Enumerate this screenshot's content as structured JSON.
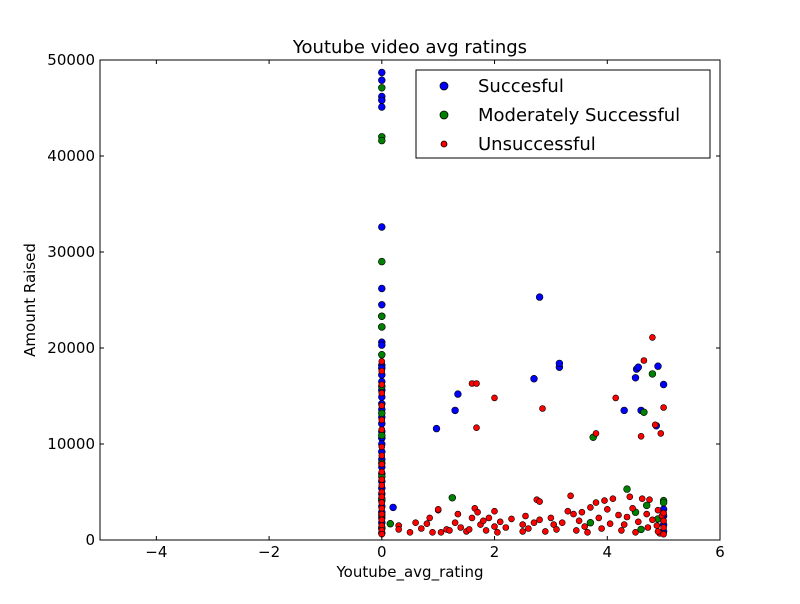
{
  "chart_data": {
    "type": "scatter",
    "title": "Youtube video avg ratings",
    "xlabel": "Youtube_avg_rating",
    "ylabel": "Amount Raised",
    "xlim": [
      -5,
      6
    ],
    "ylim": [
      0,
      50000
    ],
    "xticks": [
      -4,
      -2,
      0,
      2,
      4,
      6
    ],
    "xtick_labels": [
      "−4",
      "−2",
      "0",
      "2",
      "4",
      "6"
    ],
    "yticks": [
      0,
      10000,
      20000,
      30000,
      40000,
      50000
    ],
    "ytick_labels": [
      "0",
      "10000",
      "20000",
      "30000",
      "40000",
      "50000"
    ],
    "grid": false,
    "legend_position": "top-right",
    "series": [
      {
        "name": "Succesful",
        "color": "#0000ff",
        "points": [
          [
            0,
            48700
          ],
          [
            0,
            47900
          ],
          [
            0,
            46200
          ],
          [
            0,
            45800
          ],
          [
            0,
            45100
          ],
          [
            0,
            32600
          ],
          [
            0,
            26200
          ],
          [
            0,
            24500
          ],
          [
            0,
            23300
          ],
          [
            0,
            22200
          ],
          [
            0,
            20600
          ],
          [
            0,
            20300
          ],
          [
            0,
            18200
          ],
          [
            0,
            17900
          ],
          [
            0,
            17200
          ],
          [
            0,
            16500
          ],
          [
            0,
            15600
          ],
          [
            0,
            14900
          ],
          [
            0,
            14200
          ],
          [
            0,
            13600
          ],
          [
            0,
            12800
          ],
          [
            0,
            12100
          ],
          [
            0,
            11300
          ],
          [
            0,
            10600
          ],
          [
            0,
            10000
          ],
          [
            0,
            9200
          ],
          [
            0,
            8400
          ],
          [
            0,
            7600
          ],
          [
            0,
            6900
          ],
          [
            0,
            6100
          ],
          [
            0,
            5400
          ],
          [
            0,
            4800
          ],
          [
            0,
            4100
          ],
          [
            0,
            3500
          ],
          [
            0,
            2900
          ],
          [
            0,
            2300
          ],
          [
            0,
            1800
          ],
          [
            0,
            1200
          ],
          [
            0,
            700
          ],
          [
            0.2,
            3400
          ],
          [
            0.97,
            11600
          ],
          [
            1.3,
            13500
          ],
          [
            1.35,
            15200
          ],
          [
            2.7,
            16800
          ],
          [
            2.8,
            25300
          ],
          [
            3.15,
            18000
          ],
          [
            3.15,
            18400
          ],
          [
            4.3,
            13500
          ],
          [
            4.5,
            16900
          ],
          [
            4.52,
            17800
          ],
          [
            4.55,
            18000
          ],
          [
            4.6,
            13500
          ],
          [
            4.87,
            11900
          ],
          [
            4.9,
            18100
          ],
          [
            5.0,
            16200
          ],
          [
            5.0,
            3200
          ],
          [
            5.0,
            2500
          ],
          [
            5.0,
            1600
          ],
          [
            5.0,
            900
          ]
        ]
      },
      {
        "name": "Moderately Successful",
        "color": "#008000",
        "points": [
          [
            0,
            47100
          ],
          [
            0,
            42000
          ],
          [
            0,
            41600
          ],
          [
            0,
            29000
          ],
          [
            0,
            23300
          ],
          [
            0,
            22200
          ],
          [
            0,
            19300
          ],
          [
            0,
            16000
          ],
          [
            0,
            13200
          ],
          [
            0,
            10900
          ],
          [
            0,
            8000
          ],
          [
            0,
            6600
          ],
          [
            0,
            4300
          ],
          [
            0,
            2600
          ],
          [
            0,
            1300
          ],
          [
            0.15,
            1700
          ],
          [
            1.25,
            4400
          ],
          [
            3.75,
            10700
          ],
          [
            3.7,
            1800
          ],
          [
            4.35,
            5300
          ],
          [
            4.5,
            2900
          ],
          [
            4.65,
            13300
          ],
          [
            4.8,
            17300
          ],
          [
            4.7,
            3600
          ],
          [
            5.0,
            4100
          ],
          [
            5.0,
            3900
          ],
          [
            4.9,
            2200
          ],
          [
            4.6,
            1100
          ]
        ]
      },
      {
        "name": "Unsuccessful",
        "color": "#ff0000",
        "points": [
          [
            0,
            18600
          ],
          [
            0,
            17600
          ],
          [
            0,
            16200
          ],
          [
            0,
            15300
          ],
          [
            0,
            14000
          ],
          [
            0,
            12500
          ],
          [
            0,
            11500
          ],
          [
            0,
            9700
          ],
          [
            0,
            8800
          ],
          [
            0,
            7900
          ],
          [
            0,
            7100
          ],
          [
            0,
            6300
          ],
          [
            0,
            5700
          ],
          [
            0,
            5000
          ],
          [
            0,
            4500
          ],
          [
            0,
            3900
          ],
          [
            0,
            3300
          ],
          [
            0,
            2700
          ],
          [
            0,
            2100
          ],
          [
            0,
            1500
          ],
          [
            0,
            1000
          ],
          [
            0,
            600
          ],
          [
            0.3,
            1500
          ],
          [
            0.3,
            1100
          ],
          [
            0.5,
            800
          ],
          [
            0.6,
            1800
          ],
          [
            0.7,
            1200
          ],
          [
            0.8,
            1700
          ],
          [
            0.85,
            2300
          ],
          [
            0.9,
            800
          ],
          [
            1.0,
            3100
          ],
          [
            1.0,
            3200
          ],
          [
            1.05,
            800
          ],
          [
            1.15,
            1100
          ],
          [
            1.2,
            1000
          ],
          [
            1.3,
            1800
          ],
          [
            1.35,
            2700
          ],
          [
            1.4,
            1300
          ],
          [
            1.5,
            900
          ],
          [
            1.55,
            1100
          ],
          [
            1.6,
            16300
          ],
          [
            1.6,
            2300
          ],
          [
            1.65,
            3300
          ],
          [
            1.68,
            16300
          ],
          [
            1.68,
            11700
          ],
          [
            1.7,
            2900
          ],
          [
            1.75,
            1600
          ],
          [
            1.8,
            2000
          ],
          [
            1.85,
            1000
          ],
          [
            1.9,
            2300
          ],
          [
            2.0,
            14800
          ],
          [
            2.0,
            1400
          ],
          [
            2.0,
            3000
          ],
          [
            2.05,
            800
          ],
          [
            2.1,
            1900
          ],
          [
            2.2,
            1300
          ],
          [
            2.3,
            2200
          ],
          [
            2.5,
            900
          ],
          [
            2.5,
            1600
          ],
          [
            2.55,
            2500
          ],
          [
            2.6,
            1200
          ],
          [
            2.7,
            1800
          ],
          [
            2.75,
            4200
          ],
          [
            2.8,
            4000
          ],
          [
            2.8,
            2100
          ],
          [
            2.85,
            13700
          ],
          [
            2.9,
            900
          ],
          [
            3.0,
            2300
          ],
          [
            3.05,
            1600
          ],
          [
            3.1,
            1100
          ],
          [
            3.2,
            1800
          ],
          [
            3.3,
            3000
          ],
          [
            3.35,
            4600
          ],
          [
            3.4,
            2700
          ],
          [
            3.45,
            1000
          ],
          [
            3.5,
            2000
          ],
          [
            3.55,
            2900
          ],
          [
            3.6,
            1400
          ],
          [
            3.65,
            800
          ],
          [
            3.7,
            3400
          ],
          [
            3.8,
            11100
          ],
          [
            3.8,
            3900
          ],
          [
            3.85,
            2300
          ],
          [
            3.9,
            1200
          ],
          [
            3.95,
            4100
          ],
          [
            4.0,
            3200
          ],
          [
            4.05,
            1700
          ],
          [
            4.1,
            4300
          ],
          [
            4.15,
            14800
          ],
          [
            4.2,
            2600
          ],
          [
            4.25,
            1000
          ],
          [
            4.3,
            1600
          ],
          [
            4.35,
            2400
          ],
          [
            4.4,
            4500
          ],
          [
            4.45,
            3300
          ],
          [
            4.5,
            800
          ],
          [
            4.55,
            1900
          ],
          [
            4.6,
            10800
          ],
          [
            4.62,
            4300
          ],
          [
            4.65,
            18700
          ],
          [
            4.7,
            2700
          ],
          [
            4.72,
            1300
          ],
          [
            4.75,
            4200
          ],
          [
            4.8,
            21100
          ],
          [
            4.8,
            2100
          ],
          [
            4.85,
            12000
          ],
          [
            4.88,
            1500
          ],
          [
            4.9,
            3100
          ],
          [
            4.93,
            700
          ],
          [
            4.95,
            11100
          ],
          [
            4.97,
            2500
          ],
          [
            5.0,
            13800
          ],
          [
            5.0,
            2800
          ],
          [
            5.0,
            2000
          ],
          [
            5.0,
            1300
          ],
          [
            5.0,
            600
          ],
          [
            4.9,
            900
          ]
        ]
      }
    ]
  }
}
